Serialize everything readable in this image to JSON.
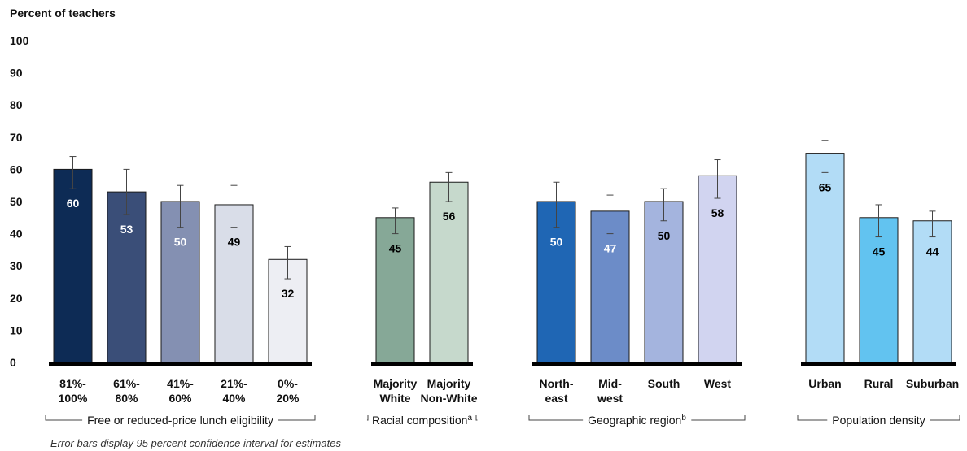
{
  "chart_data": {
    "type": "bar",
    "ylabel": "Percent of teachers",
    "ylim": [
      0,
      100
    ],
    "yticks": [
      0,
      10,
      20,
      30,
      40,
      50,
      60,
      70,
      80,
      90,
      100
    ],
    "grid": false,
    "groups": [
      {
        "label": "Free or reduced-price lunch eligibility",
        "superscript": "",
        "bars": [
          {
            "label": [
              "81%-",
              "100%"
            ],
            "value": 60,
            "ci": [
              54,
              64
            ],
            "color": "#0d2b55",
            "label_color": "#ffffff"
          },
          {
            "label": [
              "61%-",
              "80%"
            ],
            "value": 53,
            "ci": [
              46,
              60
            ],
            "color": "#3a4e78",
            "label_color": "#ffffff"
          },
          {
            "label": [
              "41%-",
              "60%"
            ],
            "value": 50,
            "ci": [
              42,
              55
            ],
            "color": "#8490b2",
            "label_color": "#ffffff"
          },
          {
            "label": [
              "21%-",
              "40%"
            ],
            "value": 49,
            "ci": [
              42,
              55
            ],
            "color": "#d9dde8",
            "label_color": "#000000"
          },
          {
            "label": [
              "0%-",
              "20%"
            ],
            "value": 32,
            "ci": [
              26,
              36
            ],
            "color": "#edeef3",
            "label_color": "#000000"
          }
        ]
      },
      {
        "label": "Racial composition",
        "superscript": "a",
        "bars": [
          {
            "label": [
              "Majority",
              "White"
            ],
            "value": 45,
            "ci": [
              40,
              48
            ],
            "color": "#86a897",
            "label_color": "#000000"
          },
          {
            "label": [
              "Majority",
              "Non-White"
            ],
            "value": 56,
            "ci": [
              50,
              59
            ],
            "color": "#c6d9cc",
            "label_color": "#000000"
          }
        ]
      },
      {
        "label": "Geographic region",
        "superscript": "b",
        "bars": [
          {
            "label": [
              "North-",
              "east"
            ],
            "value": 50,
            "ci": [
              42,
              56
            ],
            "color": "#1f66b4",
            "label_color": "#ffffff"
          },
          {
            "label": [
              "Mid-",
              "west"
            ],
            "value": 47,
            "ci": [
              40,
              52
            ],
            "color": "#6c8cc8",
            "label_color": "#ffffff"
          },
          {
            "label": [
              "South",
              ""
            ],
            "value": 50,
            "ci": [
              44,
              54
            ],
            "color": "#a4b4de",
            "label_color": "#000000"
          },
          {
            "label": [
              "West",
              ""
            ],
            "value": 58,
            "ci": [
              51,
              63
            ],
            "color": "#d1d4f0",
            "label_color": "#000000"
          }
        ]
      },
      {
        "label": "Population density",
        "superscript": "",
        "bars": [
          {
            "label": [
              "Urban",
              ""
            ],
            "value": 65,
            "ci": [
              59,
              69
            ],
            "color": "#b2dcf6",
            "label_color": "#000000"
          },
          {
            "label": [
              "Rural",
              ""
            ],
            "value": 45,
            "ci": [
              39,
              49
            ],
            "color": "#62c3f0",
            "label_color": "#000000"
          },
          {
            "label": [
              "Suburban",
              ""
            ],
            "value": 44,
            "ci": [
              39,
              47
            ],
            "color": "#b2dcf6",
            "label_color": "#000000"
          }
        ]
      }
    ]
  },
  "note": "Error bars display 95 percent confidence interval for estimates"
}
